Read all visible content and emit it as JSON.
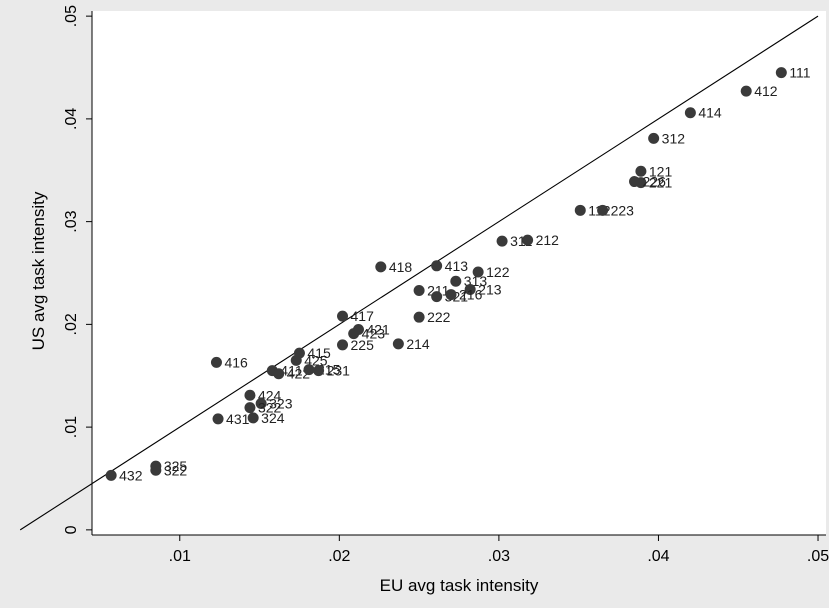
{
  "chart_data": {
    "type": "scatter",
    "title": "",
    "xlabel": "EU avg task intensity",
    "ylabel": "US avg task intensity",
    "xlim": [
      0.0045,
      0.0505
    ],
    "ylim": [
      -0.0005,
      0.0505
    ],
    "x_ticks": [
      0.01,
      0.02,
      0.03,
      0.04,
      0.05
    ],
    "x_tick_labels": [
      ".01",
      ".02",
      ".03",
      ".04",
      ".05"
    ],
    "y_ticks": [
      0,
      0.01,
      0.02,
      0.03,
      0.04,
      0.05
    ],
    "y_tick_labels": [
      "0",
      ".01",
      ".02",
      ".03",
      ".04",
      ".05"
    ],
    "grid": false,
    "reference_line": {
      "x": [
        0,
        0.05
      ],
      "y": [
        0,
        0.05
      ]
    },
    "points": [
      {
        "label": "111",
        "x": 0.0477,
        "y": 0.0445
      },
      {
        "label": "412",
        "x": 0.0455,
        "y": 0.0427
      },
      {
        "label": "414",
        "x": 0.042,
        "y": 0.0406
      },
      {
        "label": "312",
        "x": 0.0397,
        "y": 0.0381
      },
      {
        "label": "121",
        "x": 0.0389,
        "y": 0.0349
      },
      {
        "label": "221",
        "x": 0.0389,
        "y": 0.0338
      },
      {
        "label": "226",
        "x": 0.0385,
        "y": 0.0339
      },
      {
        "label": "112",
        "x": 0.0351,
        "y": 0.0311
      },
      {
        "label": "223",
        "x": 0.0365,
        "y": 0.0311
      },
      {
        "label": "311",
        "x": 0.0302,
        "y": 0.0281
      },
      {
        "label": "212",
        "x": 0.0318,
        "y": 0.0282
      },
      {
        "label": "418",
        "x": 0.0226,
        "y": 0.0256
      },
      {
        "label": "413",
        "x": 0.0261,
        "y": 0.0257
      },
      {
        "label": "122",
        "x": 0.0287,
        "y": 0.0251
      },
      {
        "label": "313",
        "x": 0.0273,
        "y": 0.0242
      },
      {
        "label": "213",
        "x": 0.0282,
        "y": 0.0234
      },
      {
        "label": "211",
        "x": 0.025,
        "y": 0.0233
      },
      {
        "label": "321",
        "x": 0.0261,
        "y": 0.0227
      },
      {
        "label": "216",
        "x": 0.027,
        "y": 0.0229
      },
      {
        "label": "417",
        "x": 0.0202,
        "y": 0.0208
      },
      {
        "label": "222",
        "x": 0.025,
        "y": 0.0207
      },
      {
        "label": "421",
        "x": 0.0212,
        "y": 0.0195
      },
      {
        "label": "423",
        "x": 0.0209,
        "y": 0.0191
      },
      {
        "label": "225",
        "x": 0.0202,
        "y": 0.018
      },
      {
        "label": "214",
        "x": 0.0237,
        "y": 0.0181
      },
      {
        "label": "415",
        "x": 0.0175,
        "y": 0.0172
      },
      {
        "label": "425",
        "x": 0.0173,
        "y": 0.0165
      },
      {
        "label": "416",
        "x": 0.0123,
        "y": 0.0163
      },
      {
        "label": "411",
        "x": 0.0158,
        "y": 0.0155
      },
      {
        "label": "422",
        "x": 0.0162,
        "y": 0.0152
      },
      {
        "label": "215",
        "x": 0.0181,
        "y": 0.0156
      },
      {
        "label": "231",
        "x": 0.0187,
        "y": 0.0155
      },
      {
        "label": "424",
        "x": 0.0144,
        "y": 0.0131
      },
      {
        "label": "323",
        "x": 0.0151,
        "y": 0.0123
      },
      {
        "label": "322",
        "x": 0.0144,
        "y": 0.0119
      },
      {
        "label": "324",
        "x": 0.0146,
        "y": 0.0109
      },
      {
        "label": "431",
        "x": 0.0124,
        "y": 0.0108
      },
      {
        "label": "325",
        "x": 0.0085,
        "y": 0.0062
      },
      {
        "label": "322",
        "x": 0.0085,
        "y": 0.0058
      },
      {
        "label": "432",
        "x": 0.0057,
        "y": 0.0053
      }
    ]
  }
}
